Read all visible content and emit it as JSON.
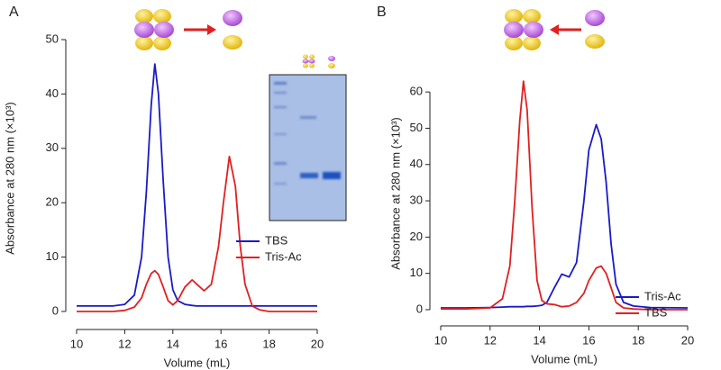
{
  "chart_data": [
    {
      "type": "line",
      "panel_label": "A",
      "xlabel": "Volume (mL)",
      "ylabel": "Absorbance at 280 nm (×10³)",
      "x": [
        10,
        10.5,
        11,
        11.5,
        12,
        12.4,
        12.7,
        12.9,
        13.1,
        13.25,
        13.4,
        13.6,
        13.8,
        14.0,
        14.2,
        14.5,
        14.8,
        15.0,
        15.3,
        15.6,
        15.9,
        16.1,
        16.35,
        16.6,
        16.8,
        17.0,
        17.3,
        17.6,
        18,
        19,
        20
      ],
      "series": [
        {
          "name": "TBS",
          "color": "#1a1ac8",
          "values": [
            1,
            1,
            1,
            1,
            1.3,
            3,
            10,
            22,
            38,
            45.5,
            40,
            24,
            10,
            4,
            2,
            1.3,
            1.1,
            1,
            1,
            1,
            1,
            1,
            1,
            1,
            1,
            1,
            1,
            1,
            1,
            1,
            1
          ]
        },
        {
          "name": "Tris-Ac",
          "color": "#e02020",
          "values": [
            0,
            0,
            0,
            0,
            0.2,
            0.8,
            2.5,
            5,
            7,
            7.5,
            6.8,
            4.5,
            2,
            1.2,
            2,
            4.5,
            5.8,
            5,
            3.8,
            5,
            12,
            20,
            28.5,
            23,
            12,
            5,
            1,
            0.3,
            0,
            0,
            0
          ]
        }
      ],
      "xlim": [
        10,
        20
      ],
      "xticks": [
        10,
        12,
        14,
        16,
        18,
        20
      ],
      "ylim": [
        -1,
        50
      ],
      "yticks": [
        0,
        10,
        20,
        30,
        40,
        50
      ],
      "legend": "lower right"
    },
    {
      "type": "line",
      "panel_label": "B",
      "xlabel": "Volume (mL)",
      "ylabel": "Absorbance at 280 nm (×10³)",
      "x": [
        10,
        11,
        12,
        12.5,
        12.8,
        13,
        13.2,
        13.35,
        13.5,
        13.7,
        13.9,
        14.1,
        14.3,
        14.6,
        14.9,
        15.2,
        15.5,
        15.8,
        16.0,
        16.3,
        16.5,
        16.7,
        16.9,
        17.1,
        17.4,
        17.8,
        18.5,
        20
      ],
      "series": [
        {
          "name": "Tris-Ac",
          "color": "#1a1ac8",
          "values": [
            0.5,
            0.5,
            0.6,
            0.7,
            0.8,
            0.8,
            0.8,
            0.8,
            0.9,
            0.9,
            1,
            1.2,
            2,
            6,
            9.8,
            9,
            13,
            30,
            44,
            51,
            47,
            35,
            18,
            7,
            2,
            1,
            0.6,
            0.5
          ]
        },
        {
          "name": "TBS",
          "color": "#e02020",
          "values": [
            0.2,
            0.2,
            0.5,
            3,
            12,
            30,
            52,
            63,
            55,
            28,
            8,
            2.5,
            1.6,
            1.4,
            0.8,
            1,
            2,
            4.5,
            8,
            11.5,
            12,
            10,
            6,
            2,
            0.5,
            0.2,
            0,
            0
          ]
        }
      ],
      "xlim": [
        10,
        20
      ],
      "xticks": [
        10,
        12,
        14,
        16,
        18,
        20
      ],
      "ylim": [
        -1,
        65
      ],
      "yticks": [
        0,
        10,
        20,
        30,
        40,
        50,
        60
      ],
      "legend": "lower right"
    }
  ]
}
